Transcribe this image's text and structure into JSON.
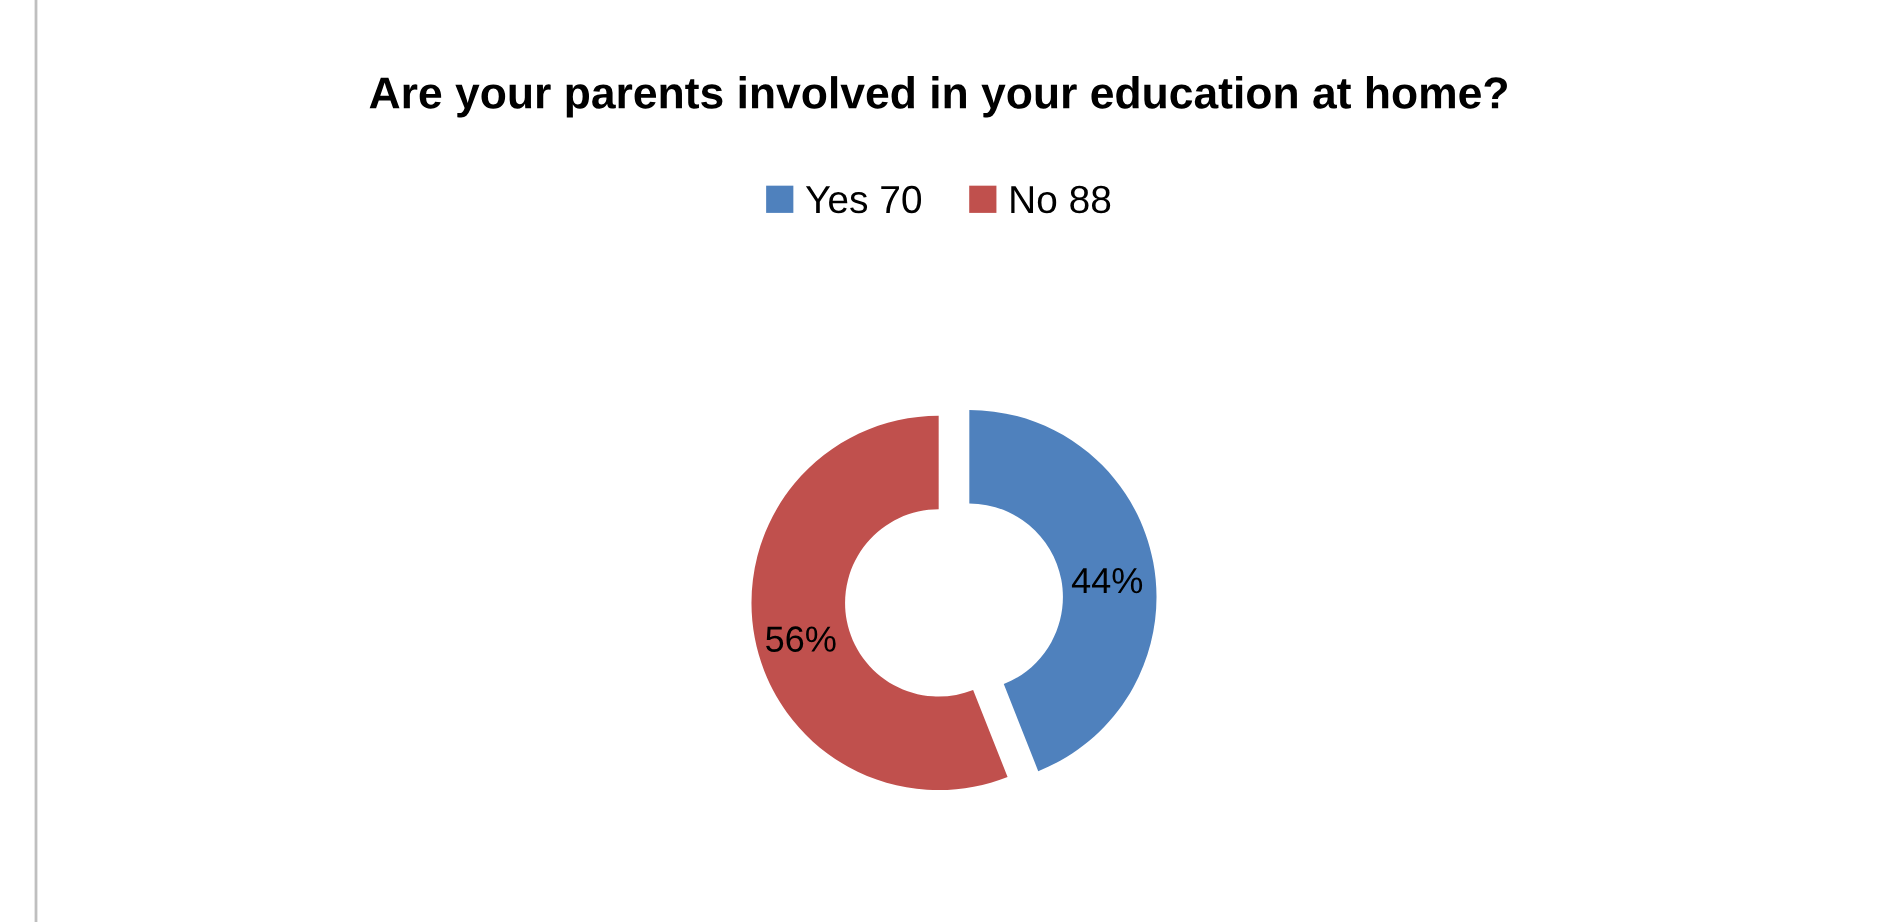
{
  "chart_data": {
    "type": "donut",
    "title": "Are your parents involved in your education at home?",
    "categories": [
      "Yes 70",
      "No 88"
    ],
    "values": [
      44,
      56
    ],
    "colors": [
      "#4f81bd",
      "#c0504d"
    ],
    "value_labels": [
      "44%",
      "56%"
    ],
    "legend": "top"
  }
}
